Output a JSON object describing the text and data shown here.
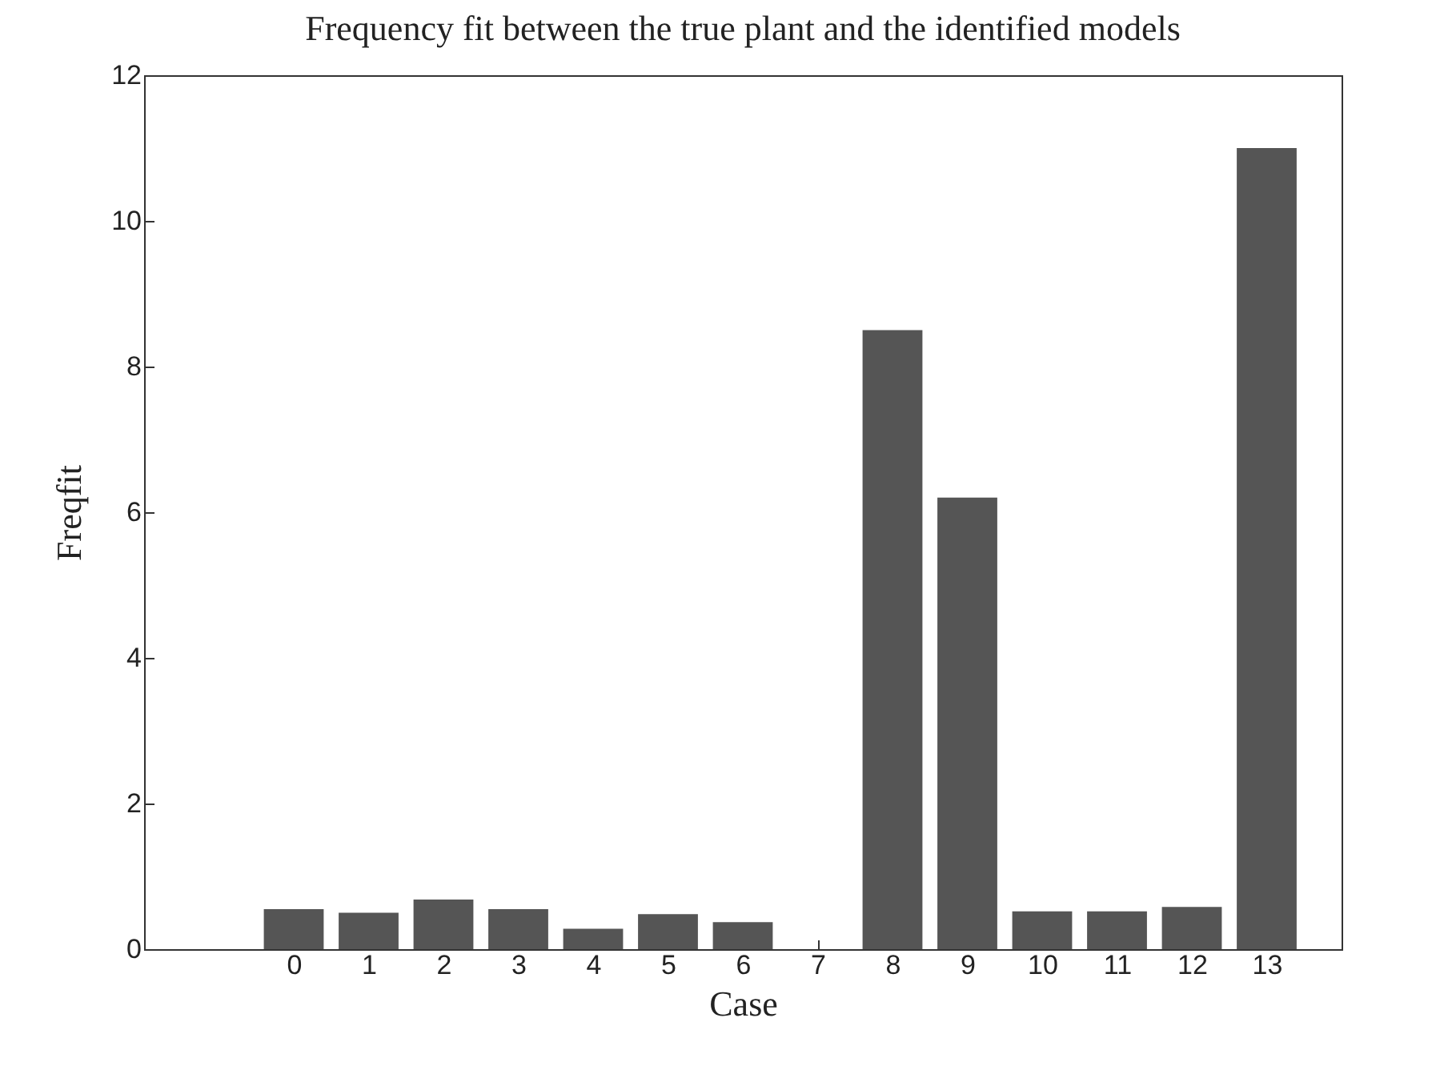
{
  "chart_data": {
    "type": "bar",
    "title": "Frequency fit between the true plant and the identified models",
    "xlabel": "Case",
    "ylabel": "Freqfit",
    "x": [
      0,
      1,
      2,
      3,
      4,
      5,
      6,
      7,
      8,
      9,
      10,
      11,
      12,
      13
    ],
    "values": [
      0.55,
      0.5,
      0.68,
      0.55,
      0.28,
      0.48,
      0.37,
      0,
      8.5,
      6.2,
      0.52,
      0.52,
      0.58,
      11
    ],
    "color": "#555555",
    "xlim": [
      -2,
      14
    ],
    "xticks": [
      0,
      1,
      2,
      3,
      4,
      5,
      6,
      7,
      8,
      9,
      10,
      11,
      12,
      13
    ],
    "ylim": [
      0,
      12
    ],
    "yticks": [
      0,
      2,
      4,
      6,
      8,
      10,
      12
    ],
    "grid": false
  }
}
